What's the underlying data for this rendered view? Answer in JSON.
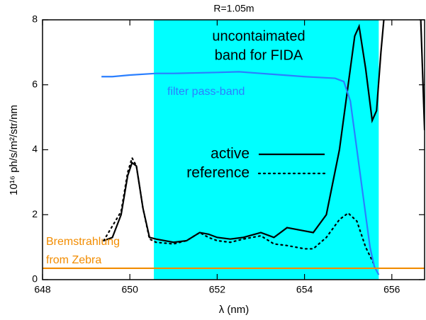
{
  "chart_data": {
    "type": "line",
    "title": "R=1.05m",
    "xlabel": "λ (nm)",
    "ylabel": "10¹⁶ ph/s/m²/str/nm",
    "xlim": [
      648,
      656.75
    ],
    "xticks": [
      648,
      650,
      652,
      654,
      656
    ],
    "ylim": [
      0,
      8
    ],
    "yticks": [
      0,
      2,
      4,
      6,
      8
    ],
    "band": {
      "x": [
        650.55,
        655.7
      ],
      "color": "#00ffff",
      "label": [
        "uncontaimated",
        "band for FIDA"
      ]
    },
    "series": [
      {
        "name": "active",
        "color": "#000000",
        "dash": "solid",
        "legend": true,
        "x": [
          649.4,
          649.6,
          649.8,
          649.95,
          650.05,
          650.15,
          650.3,
          650.45,
          650.6,
          651,
          651.3,
          651.6,
          651.8,
          652,
          652.3,
          652.6,
          653,
          653.3,
          653.6,
          654,
          654.2,
          654.5,
          654.8,
          655,
          655.15,
          655.25,
          655.4,
          655.55,
          655.65,
          655.75,
          655.85,
          656.6,
          656.65,
          656.75
        ],
        "values": [
          1.2,
          1.3,
          2.0,
          3.2,
          3.6,
          3.5,
          2.2,
          1.3,
          1.25,
          1.15,
          1.2,
          1.45,
          1.4,
          1.3,
          1.25,
          1.3,
          1.45,
          1.3,
          1.6,
          1.5,
          1.45,
          2.0,
          4.0,
          6.0,
          7.5,
          7.8,
          6.5,
          4.9,
          5.2,
          7.0,
          8.5,
          null,
          8.5,
          4.6
        ]
      },
      {
        "name": "reference",
        "color": "#000000",
        "dash": "dotted",
        "legend": true,
        "x": [
          649.4,
          649.8,
          649.95,
          650.05,
          650.15,
          650.3,
          650.45,
          650.6,
          651,
          651.3,
          651.6,
          651.8,
          652,
          652.3,
          652.6,
          653,
          653.3,
          653.6,
          654,
          654.2,
          654.5,
          654.8,
          655,
          655.2,
          655.4,
          655.6
        ],
        "values": [
          1.2,
          2.1,
          3.3,
          3.75,
          3.5,
          2.2,
          1.25,
          1.15,
          1.1,
          1.2,
          1.45,
          1.3,
          1.2,
          1.15,
          1.25,
          1.35,
          1.1,
          1.05,
          0.95,
          0.95,
          1.3,
          1.85,
          2.05,
          1.8,
          1.0,
          0.45
        ]
      },
      {
        "name": "filter pass-band",
        "color": "#2a7fff",
        "dash": "solid",
        "legend": false,
        "x": [
          649.35,
          649.6,
          650,
          650.6,
          651,
          652,
          652.5,
          653,
          654,
          654.7,
          654.9,
          655.05,
          655.2,
          655.3,
          655.4,
          655.5,
          655.6,
          655.7
        ],
        "values": [
          6.25,
          6.25,
          6.3,
          6.35,
          6.35,
          6.38,
          6.4,
          6.35,
          6.25,
          6.2,
          6.1,
          5.5,
          4.0,
          3.0,
          2.0,
          1.0,
          0.4,
          0.15
        ]
      },
      {
        "name": [
          "Bremstrahlung",
          "from Zebra"
        ],
        "color": "#f28c00",
        "dash": "solid",
        "legend": false,
        "x": [
          648,
          656.75
        ],
        "values": [
          0.35,
          0.35
        ]
      }
    ]
  }
}
